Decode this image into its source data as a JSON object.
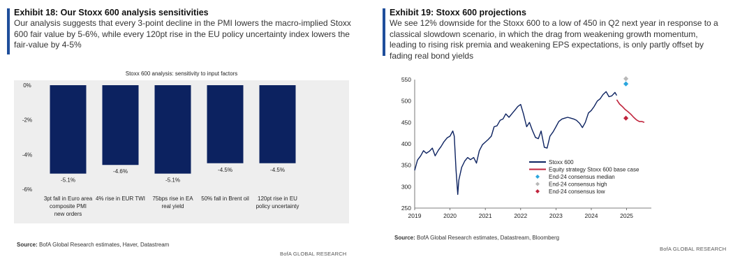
{
  "exhibit18": {
    "title": "Exhibit 18: Our Stoxx 600 analysis sensitivities",
    "subtitle": "Our analysis suggests that every 3-point decline in the PMI lowers the macro-implied Stoxx 600 fair value by 5-6%, while every 120pt rise in the EU policy uncertainty index lowers the fair-value by 4-5%",
    "source_label": "Source:",
    "source_text": " BofA Global Research estimates, Haver, Datastream",
    "brand": "BofA GLOBAL RESEARCH"
  },
  "exhibit19": {
    "title": "Exhibit 19: Stoxx 600 projections",
    "subtitle": "We see 12% downside for the Stoxx 600 to a low of 450 in Q2 next year in response to a classical slowdown scenario, in which the drag from weakening growth momentum, leading to rising risk premia and weakening EPS expectations, is only partly offset by fading real bond yields",
    "source_label": "Source:",
    "source_text": " BofA Global Research estimates, Datastream, Bloomberg",
    "brand": "BofA GLOBAL RESEARCH"
  },
  "chart_data": [
    {
      "type": "bar",
      "title": "Stoxx 600 analysis: sensitivity to input factors",
      "categories": [
        "3pt fall in Euro area composite PMI new orders",
        "4% rise in EUR TWI",
        "75bps rise in EA real yield",
        "50% fall in Brent oil",
        "120pt rise in EU policy uncertainty"
      ],
      "category_lines": [
        [
          "3pt fall in Euro area",
          "composite PMI",
          "new orders"
        ],
        [
          "4% rise in EUR TWI"
        ],
        [
          "75bps rise in EA",
          "real yield"
        ],
        [
          "50% fall in Brent oil"
        ],
        [
          "120pt rise in EU",
          "policy uncertainty"
        ]
      ],
      "values": [
        -5.1,
        -4.6,
        -5.1,
        -4.5,
        -4.5
      ],
      "value_labels": [
        "-5.1%",
        "-4.6%",
        "-5.1%",
        "-4.5%",
        "-4.5%"
      ],
      "ylim": [
        -6,
        0
      ],
      "yticks": [
        0,
        -2,
        -4,
        -6
      ],
      "ytick_labels": [
        "0%",
        "-2%",
        "-4%",
        "-6%"
      ],
      "bar_color": "#0c2260",
      "grid": false
    },
    {
      "type": "line",
      "ylim": [
        250,
        550
      ],
      "yticks": [
        250,
        300,
        350,
        400,
        450,
        500,
        550
      ],
      "xlim": [
        2019,
        2025.7
      ],
      "xticks": [
        2019,
        2020,
        2021,
        2022,
        2023,
        2024,
        2025
      ],
      "grid": false,
      "legend_placement": "lower-right",
      "series": [
        {
          "name": "Stoxx 600",
          "color": "#0c2260",
          "x": [
            2019.0,
            2019.08,
            2019.17,
            2019.25,
            2019.33,
            2019.42,
            2019.5,
            2019.58,
            2019.67,
            2019.75,
            2019.83,
            2019.92,
            2020.0,
            2020.08,
            2020.12,
            2020.17,
            2020.22,
            2020.25,
            2020.33,
            2020.42,
            2020.5,
            2020.58,
            2020.67,
            2020.75,
            2020.83,
            2020.92,
            2021.0,
            2021.08,
            2021.17,
            2021.25,
            2021.33,
            2021.42,
            2021.5,
            2021.58,
            2021.67,
            2021.75,
            2021.83,
            2021.92,
            2022.0,
            2022.08,
            2022.17,
            2022.25,
            2022.33,
            2022.42,
            2022.5,
            2022.58,
            2022.67,
            2022.75,
            2022.83,
            2022.92,
            2023.0,
            2023.08,
            2023.17,
            2023.25,
            2023.33,
            2023.42,
            2023.5,
            2023.58,
            2023.67,
            2023.75,
            2023.83,
            2023.92,
            2024.0,
            2024.08,
            2024.17,
            2024.25,
            2024.33,
            2024.42,
            2024.5,
            2024.58,
            2024.67,
            2024.72
          ],
          "values": [
            338,
            362,
            372,
            384,
            378,
            383,
            390,
            372,
            385,
            394,
            405,
            414,
            418,
            430,
            418,
            340,
            282,
            315,
            345,
            360,
            368,
            363,
            368,
            355,
            384,
            398,
            404,
            410,
            418,
            440,
            442,
            455,
            458,
            470,
            462,
            470,
            478,
            487,
            492,
            470,
            440,
            450,
            432,
            415,
            412,
            430,
            392,
            390,
            418,
            428,
            440,
            452,
            458,
            460,
            462,
            460,
            458,
            455,
            448,
            438,
            450,
            472,
            478,
            487,
            500,
            505,
            515,
            522,
            510,
            512,
            520,
            513
          ]
        },
        {
          "name": "Equity strategy Stoxx 600 base case",
          "color": "#c0243c",
          "x": [
            2024.72,
            2024.8,
            2024.88,
            2024.96,
            2025.04,
            2025.12,
            2025.2,
            2025.28,
            2025.36,
            2025.44,
            2025.5
          ],
          "values": [
            503,
            493,
            487,
            480,
            475,
            469,
            462,
            456,
            452,
            452,
            450
          ]
        },
        {
          "name": "End-24 consensus median",
          "color": "#2ba6de",
          "marker": "diamond",
          "x": [
            2024.98
          ],
          "values": [
            540
          ]
        },
        {
          "name": "End-24 consensus high",
          "color": "#b8b8b8",
          "marker": "diamond",
          "x": [
            2024.98
          ],
          "values": [
            552
          ]
        },
        {
          "name": "End-24 consensus low",
          "color": "#c0243c",
          "marker": "diamond",
          "x": [
            2024.98
          ],
          "values": [
            460
          ]
        }
      ]
    }
  ]
}
